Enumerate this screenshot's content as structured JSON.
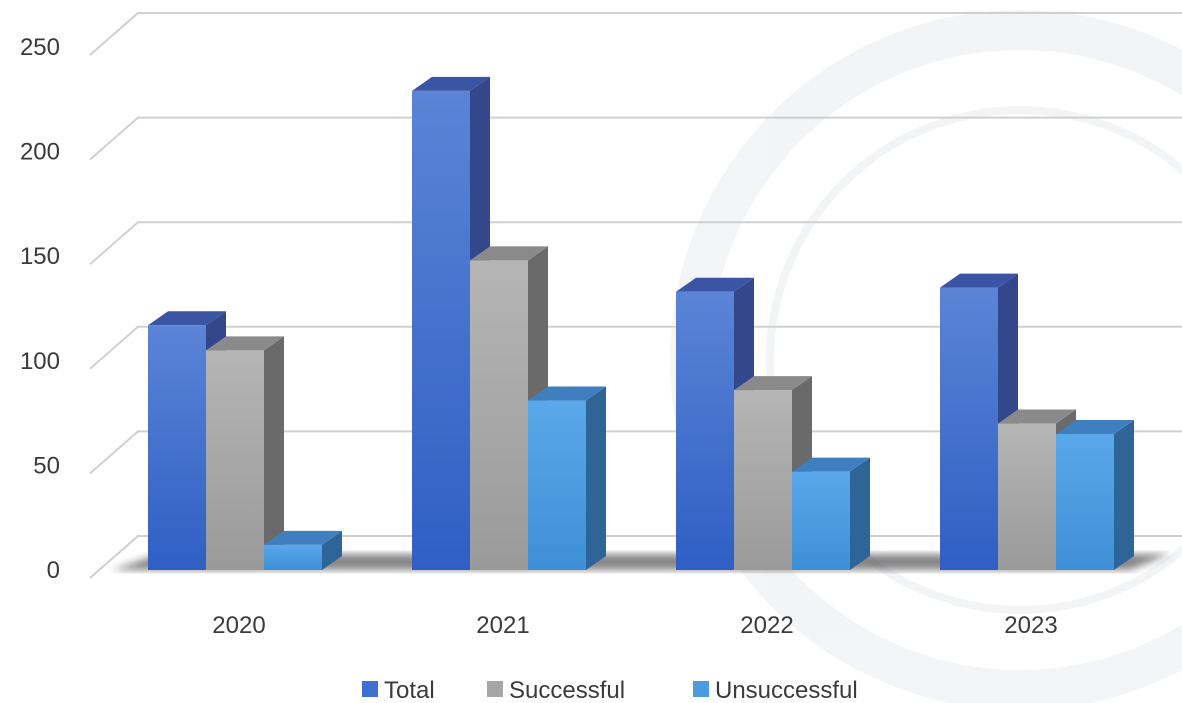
{
  "chart_data": {
    "type": "bar",
    "categories": [
      "2020",
      "2021",
      "2022",
      "2023"
    ],
    "series": [
      {
        "name": "Total",
        "values": [
          117,
          229,
          133,
          135
        ]
      },
      {
        "name": "Successful",
        "values": [
          105,
          148,
          86,
          70
        ]
      },
      {
        "name": "Unsuccessful",
        "values": [
          12,
          81,
          47,
          65
        ]
      }
    ],
    "ylim": [
      0,
      250
    ],
    "yticks": [
      "0",
      "50",
      "100",
      "150",
      "200",
      "250"
    ],
    "grid": true,
    "legend_position": "bottom",
    "colors": {
      "Total": "#3f6fcf",
      "Successful": "#a6a6a6",
      "Unsuccessful": "#4a9ce0"
    }
  }
}
